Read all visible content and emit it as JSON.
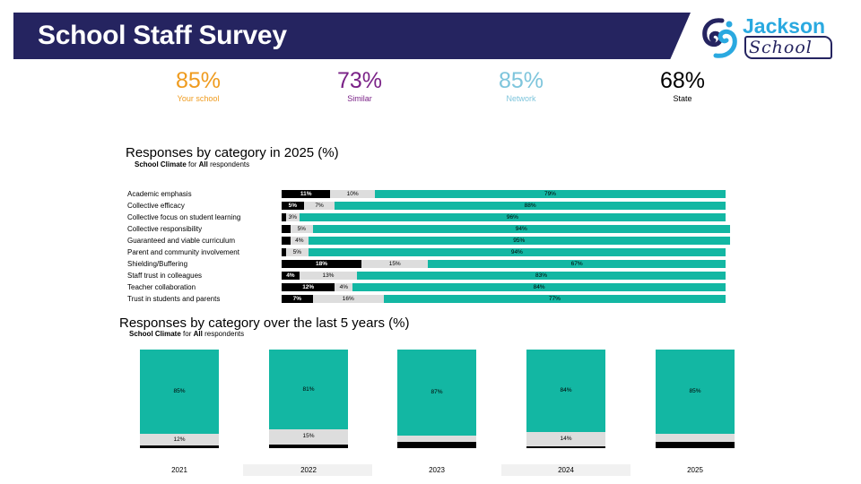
{
  "header": {
    "title": "School Staff Survey",
    "logo_word_1": "Jackson",
    "logo_word_2": "School"
  },
  "kpis": [
    {
      "value": "85%",
      "label": "Your school",
      "color": "#ef9b1e"
    },
    {
      "value": "73%",
      "label": "Similar",
      "color": "#7a2287"
    },
    {
      "value": "85%",
      "label": "Network",
      "color": "#7ec5dc"
    },
    {
      "value": "68%",
      "label": "State",
      "color": "#000000"
    }
  ],
  "colors": {
    "header": "#252460",
    "favourable": "#13b7a3",
    "neutral": "#dddddd",
    "unfavourable": "#000000"
  },
  "chart_data": [
    {
      "type": "bar",
      "orientation": "horizontal",
      "stacked": true,
      "title": "Responses by category in 2025 (%)",
      "subtitle": {
        "bold_1": "School Climate",
        "mid": "for",
        "bold_2": "All",
        "end": "respondents"
      },
      "categories": [
        "Academic emphasis",
        "Collective efficacy",
        "Collective focus on student learning",
        "Collective responsibility",
        "Guaranteed and viable curriculum",
        "Parent and community involvement",
        "Shielding/Buffering",
        "Staff trust in colleagues",
        "Teacher collaboration",
        "Trust in students and parents"
      ],
      "series": [
        {
          "color": "#000000",
          "values": [
            11,
            5,
            1,
            2,
            2,
            1,
            18,
            4,
            12,
            7
          ],
          "labels": [
            "11%",
            "5%",
            "",
            "",
            "",
            "",
            "18%",
            "4%",
            "12%",
            "7%"
          ]
        },
        {
          "color": "#dddddd",
          "values": [
            10,
            7,
            3,
            5,
            4,
            5,
            15,
            13,
            4,
            16
          ],
          "labels": [
            "10%",
            "7%",
            "3%",
            "5%",
            "4%",
            "5%",
            "15%",
            "13%",
            "4%",
            "16%"
          ]
        },
        {
          "color": "#13b7a3",
          "values": [
            79,
            88,
            96,
            94,
            95,
            94,
            67,
            83,
            84,
            77
          ],
          "labels": [
            "79%",
            "88%",
            "96%",
            "94%",
            "95%",
            "94%",
            "67%",
            "83%",
            "84%",
            "77%"
          ]
        }
      ],
      "xlim": [
        0,
        100
      ]
    },
    {
      "type": "bar",
      "orientation": "vertical",
      "stacked": true,
      "title": "Responses by category over the last 5 years (%)",
      "subtitle": {
        "bold_1": "School Climate",
        "mid": "for",
        "bold_2": "All",
        "end": "respondents"
      },
      "categories": [
        "2021",
        "2022",
        "2023",
        "2024",
        "2025"
      ],
      "series": [
        {
          "color": "#000000",
          "values": [
            3,
            4,
            6,
            2,
            6
          ],
          "labels": [
            "",
            "",
            "",
            "",
            ""
          ]
        },
        {
          "color": "#dddddd",
          "values": [
            12,
            15,
            7,
            14,
            9
          ],
          "labels": [
            "12%",
            "15%",
            "",
            "14%",
            ""
          ]
        },
        {
          "color": "#13b7a3",
          "values": [
            85,
            81,
            87,
            84,
            85
          ],
          "labels": [
            "85%",
            "81%",
            "87%",
            "84%",
            "85%"
          ]
        }
      ],
      "ylim": [
        0,
        100
      ]
    }
  ]
}
